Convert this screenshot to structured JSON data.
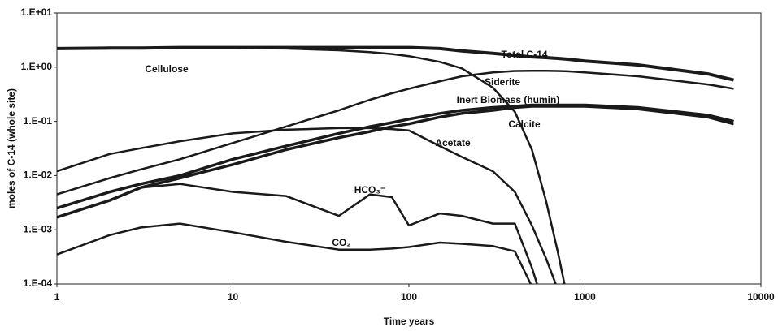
{
  "chart_data": {
    "type": "line",
    "x_label": "Time years",
    "y_label": "moles of C-14 (whole site)",
    "x_log": true,
    "y_log": true,
    "x": [
      1,
      2,
      3,
      5,
      10,
      20,
      40,
      60,
      80,
      100,
      150,
      200,
      300,
      400,
      500,
      600,
      700,
      800,
      1000,
      2000,
      5000,
      7000
    ],
    "xlim": [
      1,
      10000
    ],
    "xticks": [
      1,
      10,
      100,
      1000,
      10000
    ],
    "ylim": [
      0.0001,
      10
    ],
    "yticks": [
      {
        "value": 0.0001,
        "label": "1.E-04"
      },
      {
        "value": 0.001,
        "label": "1.E-03"
      },
      {
        "value": 0.01,
        "label": "1.E-02"
      },
      {
        "value": 0.1,
        "label": "1.E-01"
      },
      {
        "value": 1,
        "label": "1.E+00"
      },
      {
        "value": 10,
        "label": "1.E+01"
      }
    ],
    "series": [
      {
        "name": "Total C-14",
        "color": "#1a1a1a",
        "width": 4,
        "values": [
          2.2,
          2.25,
          2.25,
          2.3,
          2.3,
          2.3,
          2.3,
          2.3,
          2.3,
          2.3,
          2.2,
          2.0,
          1.8,
          1.65,
          1.55,
          1.5,
          1.45,
          1.4,
          1.3,
          1.1,
          0.75,
          0.58
        ]
      },
      {
        "name": "Cellulose",
        "color": "#1a1a1a",
        "width": 2.5,
        "values": [
          2.2,
          2.2,
          2.2,
          2.25,
          2.25,
          2.2,
          2.05,
          1.9,
          1.75,
          1.6,
          1.25,
          0.95,
          0.42,
          0.15,
          0.03,
          0.0035,
          0.0004,
          5e-05,
          null,
          null,
          null,
          null
        ]
      },
      {
        "name": "Siderite",
        "color": "#1a1a1a",
        "width": 2.5,
        "values": [
          0.0045,
          0.009,
          0.013,
          0.02,
          0.04,
          0.08,
          0.16,
          0.25,
          0.33,
          0.4,
          0.55,
          0.68,
          0.8,
          0.85,
          0.86,
          0.86,
          0.85,
          0.84,
          0.8,
          0.68,
          0.48,
          0.4
        ]
      },
      {
        "name": "Inert Biomass (humin)",
        "color": "#1a1a1a",
        "width": 3.5,
        "values": [
          0.0025,
          0.005,
          0.007,
          0.01,
          0.02,
          0.035,
          0.06,
          0.08,
          0.095,
          0.11,
          0.14,
          0.16,
          0.18,
          0.19,
          0.2,
          0.2,
          0.2,
          0.2,
          0.2,
          0.18,
          0.13,
          0.1
        ]
      },
      {
        "name": "Calcite",
        "color": "#1a1a1a",
        "width": 3.5,
        "values": [
          0.0017,
          0.0035,
          0.006,
          0.009,
          0.016,
          0.03,
          0.05,
          0.065,
          0.08,
          0.09,
          0.12,
          0.14,
          0.16,
          0.18,
          0.19,
          0.19,
          0.19,
          0.19,
          0.19,
          0.17,
          0.12,
          0.09
        ]
      },
      {
        "name": "Acetate",
        "color": "#1a1a1a",
        "width": 2.5,
        "values": [
          0.012,
          0.025,
          0.032,
          0.043,
          0.06,
          0.07,
          0.075,
          0.075,
          0.072,
          0.068,
          0.035,
          0.022,
          0.012,
          0.005,
          0.0012,
          0.0003,
          8e-05,
          null,
          null,
          null,
          null,
          null
        ]
      },
      {
        "name": "HCO₃⁻",
        "color": "#1a1a1a",
        "width": 2.5,
        "values": [
          0.0017,
          0.0035,
          0.006,
          0.007,
          0.005,
          0.0042,
          0.0018,
          0.0045,
          0.004,
          0.0012,
          0.002,
          0.0018,
          0.0013,
          0.0013,
          0.0002,
          3e-05,
          null,
          null,
          null,
          null,
          null,
          null
        ]
      },
      {
        "name": "CO₂",
        "color": "#1a1a1a",
        "width": 2.5,
        "values": [
          0.00035,
          0.0008,
          0.0011,
          0.0013,
          0.0009,
          0.0006,
          0.00043,
          0.00043,
          0.00045,
          0.00048,
          0.00058,
          0.00055,
          0.0005,
          0.0004,
          9e-05,
          null,
          null,
          null,
          null,
          null,
          null,
          null
        ]
      }
    ]
  }
}
